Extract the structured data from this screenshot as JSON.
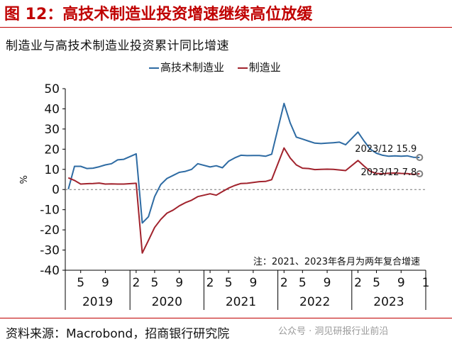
{
  "figure_title": "图 12：高技术制造业投资增速继续高位放缓",
  "source": "资料来源：Macrobond，招商银行研究院",
  "watermark": "公众号 · 洞见研报行业前沿",
  "chart_data": {
    "type": "line",
    "title": "制造业与高技术制造业投资累计同比增速",
    "xlabel": "",
    "ylabel": "%",
    "ylim": [
      -40,
      50
    ],
    "yticks": [
      50,
      40,
      30,
      20,
      10,
      0,
      -10,
      -20,
      -30,
      -40
    ],
    "grid": false,
    "legend_position": "top",
    "zero_line": "dashed",
    "month_ticks": [
      "5",
      "9",
      "2",
      "5",
      "9",
      "2",
      "5",
      "9",
      "2",
      "5",
      "9",
      "2",
      "5",
      "9",
      "1"
    ],
    "year_labels": [
      "2019",
      "2020",
      "2021",
      "2022",
      "2023"
    ],
    "annotation": "注：2021、2023年各月为两年复合增速",
    "x": [
      "2019-03",
      "2019-04",
      "2019-05",
      "2019-06",
      "2019-07",
      "2019-08",
      "2019-09",
      "2019-10",
      "2019-11",
      "2019-12",
      "2020-02",
      "2020-03",
      "2020-04",
      "2020-05",
      "2020-06",
      "2020-07",
      "2020-08",
      "2020-09",
      "2020-10",
      "2020-11",
      "2020-12",
      "2021-02",
      "2021-03",
      "2021-04",
      "2021-05",
      "2021-06",
      "2021-07",
      "2021-08",
      "2021-09",
      "2021-10",
      "2021-11",
      "2021-12",
      "2022-02",
      "2022-03",
      "2022-04",
      "2022-05",
      "2022-06",
      "2022-07",
      "2022-08",
      "2022-09",
      "2022-10",
      "2022-11",
      "2022-12",
      "2023-02",
      "2023-03",
      "2023-04",
      "2023-05",
      "2023-06",
      "2023-07",
      "2023-08",
      "2023-09",
      "2023-10",
      "2023-11",
      "2023-12"
    ],
    "series": [
      {
        "name": "高技术制造业",
        "color": "#2e6ba3",
        "values": [
          0.2,
          11.5,
          11.5,
          10.4,
          10.6,
          11.3,
          12.2,
          12.8,
          14.7,
          15.0,
          17.7,
          -16.6,
          -13.5,
          -3.5,
          2.5,
          5.5,
          7.0,
          8.5,
          9.0,
          10.0,
          12.8,
          11.2,
          11.8,
          10.8,
          14.0,
          15.7,
          17.0,
          16.8,
          16.9,
          16.9,
          16.5,
          17.5,
          42.7,
          33.0,
          26.0,
          25.0,
          24.0,
          23.0,
          22.8,
          23.0,
          23.2,
          23.5,
          22.2,
          28.5,
          24.0,
          20.0,
          18.0,
          17.0,
          16.5,
          16.7,
          16.5,
          16.7,
          16.0,
          15.9
        ],
        "end_label": "2023/12 15.9"
      },
      {
        "name": "制造业",
        "color": "#a1232d",
        "values": [
          5.8,
          4.5,
          2.7,
          2.9,
          3.0,
          3.2,
          2.7,
          2.8,
          2.7,
          2.7,
          3.1,
          -31.5,
          -25.2,
          -18.8,
          -14.8,
          -11.7,
          -10.2,
          -8.1,
          -6.5,
          -5.3,
          -3.5,
          -2.1,
          -2.8,
          -1.0,
          0.7,
          2.0,
          3.0,
          3.1,
          3.5,
          3.9,
          4.0,
          4.9,
          20.6,
          15.6,
          12.2,
          10.6,
          10.4,
          9.9,
          10.0,
          10.1,
          10.0,
          9.7,
          9.4,
          14.4,
          11.6,
          9.0,
          8.0,
          7.8,
          8.1,
          8.2,
          8.0,
          7.9,
          7.5,
          7.8
        ],
        "end_label": "2023/12 7.8"
      }
    ]
  }
}
